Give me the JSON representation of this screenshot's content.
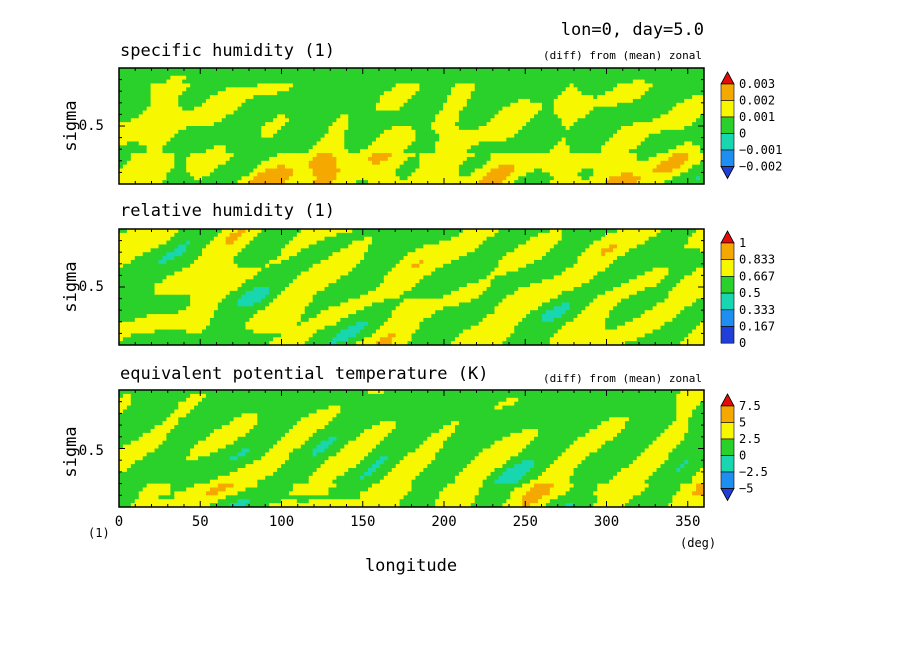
{
  "figure": {
    "header": "lon=0, day=5.0",
    "x_axis_label": "longitude",
    "x_unit": "(deg)",
    "y_unit": "(1)",
    "x_ticks": [
      "0",
      "50",
      "100",
      "150",
      "200",
      "250",
      "300",
      "350"
    ],
    "y_tick": "0.5"
  },
  "chart_data": [
    {
      "type": "heatmap",
      "title": "specific humidity (1)",
      "subtitle": "(diff) from (mean) zonal",
      "xlabel": "longitude",
      "ylabel": "sigma",
      "xlim": [
        0,
        360
      ],
      "ylim": [
        0,
        1
      ],
      "colorbar": [
        "0.003",
        "0.002",
        "0.001",
        "0",
        "−0.001",
        "−0.002"
      ],
      "extend": "both",
      "grid": false
    },
    {
      "type": "heatmap",
      "title": "relative humidity (1)",
      "subtitle": "",
      "xlabel": "longitude",
      "ylabel": "sigma",
      "xlim": [
        0,
        360
      ],
      "ylim": [
        0,
        1
      ],
      "colorbar": [
        "1",
        "0.833",
        "0.667",
        "0.5",
        "0.333",
        "0.167",
        "0"
      ],
      "extend": "max",
      "grid": false
    },
    {
      "type": "heatmap",
      "title": "equivalent potential temperature (K)",
      "subtitle": "(diff) from (mean) zonal",
      "xlabel": "longitude",
      "ylabel": "sigma",
      "xlim": [
        0,
        360
      ],
      "ylim": [
        0,
        1
      ],
      "colorbar": [
        "7.5",
        "5",
        "2.5",
        "0",
        "−2.5",
        "−5"
      ],
      "extend": "both",
      "grid": false
    }
  ],
  "colors": {
    "levels": [
      "#1f3fd8",
      "#1e8ff0",
      "#18d6b0",
      "#2bd12b",
      "#f7f700",
      "#f5a800",
      "#e60b0b"
    ]
  }
}
